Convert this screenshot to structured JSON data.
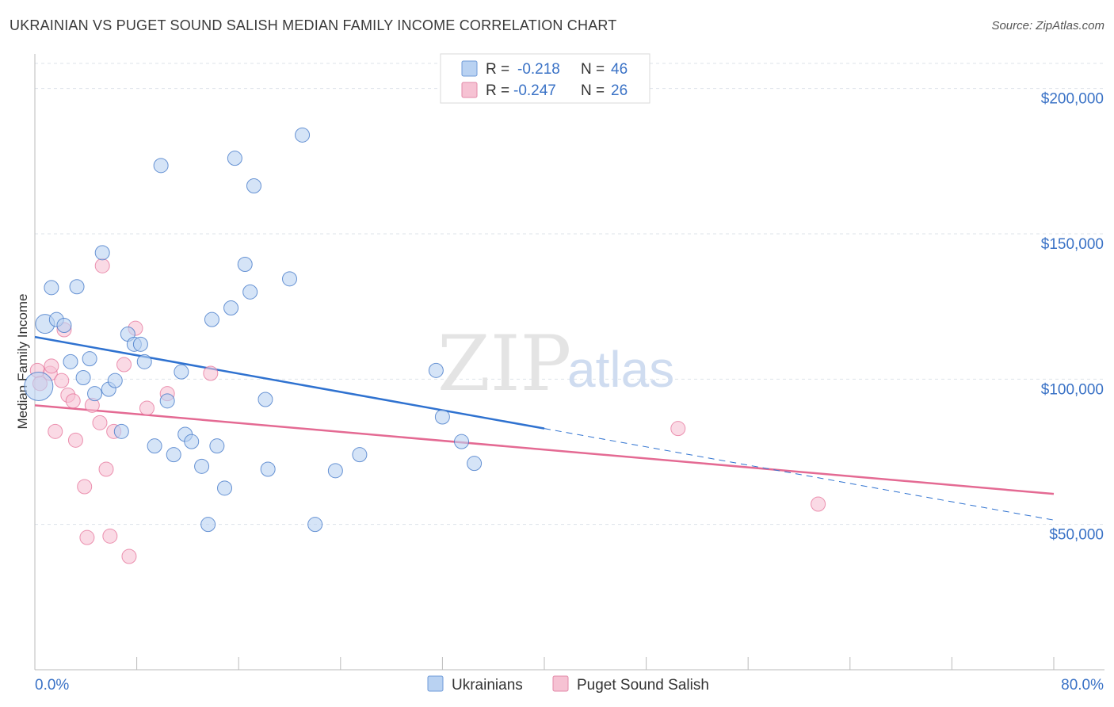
{
  "header": {
    "title": "UKRAINIAN VS PUGET SOUND SALISH MEDIAN FAMILY INCOME CORRELATION CHART",
    "source": "Source: ZipAtlas.com"
  },
  "watermark": {
    "zip": "ZIP",
    "atlas": "atlas"
  },
  "colors": {
    "blue": "#3a72c6",
    "blue_fill": "#b9d2f2",
    "blue_line": "#2f72d0",
    "pink": "#e46a93",
    "pink_fill": "#f6c2d3",
    "grid": "#dde3ea"
  },
  "legend": {
    "rows": [
      {
        "r_label": "R = ",
        "r_value": "-0.218",
        "n_label": "N = ",
        "n_value": "46"
      },
      {
        "r_label": "R = ",
        "r_value": "-0.247",
        "n_label": "N = ",
        "n_value": "26"
      }
    ]
  },
  "bottom_legend": {
    "items": [
      "Ukrainians",
      "Puget Sound Salish"
    ]
  },
  "chart_data": {
    "type": "scatter",
    "title": "UKRAINIAN VS PUGET SOUND SALISH MEDIAN FAMILY INCOME CORRELATION CHART",
    "xlabel": "",
    "ylabel": "Median Family Income",
    "xlim": [
      0,
      80
    ],
    "ylim": [
      0,
      210000
    ],
    "x_tick_labels": [
      "0.0%",
      "80.0%"
    ],
    "y_ticks": [
      50000,
      100000,
      150000,
      200000
    ],
    "y_tick_labels": [
      "$50,000",
      "$100,000",
      "$150,000",
      "$200,000"
    ],
    "series": [
      {
        "name": "Ukrainians",
        "color": "#3a72c6",
        "trend": {
          "x_start": 0,
          "y_start": 114500,
          "x_end": 40,
          "y_end": 83000,
          "dashed_to_x": 80,
          "dashed_to_y": 51500
        },
        "points": [
          [
            0.3,
            97500,
            3
          ],
          [
            0.8,
            119000,
            2
          ],
          [
            1.3,
            131500,
            1
          ],
          [
            1.7,
            120500,
            1
          ],
          [
            2.3,
            118500,
            1
          ],
          [
            2.8,
            106000,
            1
          ],
          [
            3.3,
            131800,
            1
          ],
          [
            3.8,
            100500,
            1
          ],
          [
            4.3,
            107000,
            1
          ],
          [
            4.7,
            95000,
            1
          ],
          [
            5.3,
            143500,
            1
          ],
          [
            5.8,
            96500,
            1
          ],
          [
            6.3,
            99500,
            1
          ],
          [
            6.8,
            82000,
            1
          ],
          [
            7.3,
            115500,
            1
          ],
          [
            7.8,
            112000,
            1
          ],
          [
            8.3,
            112000,
            1
          ],
          [
            8.6,
            106000,
            1
          ],
          [
            9.4,
            77000,
            1
          ],
          [
            9.9,
            173500,
            1
          ],
          [
            10.4,
            92500,
            1
          ],
          [
            10.9,
            74000,
            1
          ],
          [
            11.5,
            102500,
            1
          ],
          [
            11.8,
            81000,
            1
          ],
          [
            12.3,
            78500,
            1
          ],
          [
            13.1,
            70000,
            1
          ],
          [
            13.6,
            50000,
            1
          ],
          [
            13.9,
            120500,
            1
          ],
          [
            14.3,
            77000,
            1
          ],
          [
            14.9,
            62500,
            1
          ],
          [
            15.4,
            124500,
            1
          ],
          [
            15.7,
            176000,
            1
          ],
          [
            16.5,
            139500,
            1
          ],
          [
            16.9,
            130000,
            1
          ],
          [
            17.2,
            166500,
            1
          ],
          [
            18.1,
            93000,
            1
          ],
          [
            18.3,
            69000,
            1
          ],
          [
            20.0,
            134500,
            1
          ],
          [
            21.0,
            184000,
            1
          ],
          [
            22.0,
            50000,
            1
          ],
          [
            23.6,
            68500,
            1
          ],
          [
            25.5,
            74000,
            1
          ],
          [
            31.5,
            103000,
            1
          ],
          [
            32.0,
            87000,
            1
          ],
          [
            33.5,
            78500,
            1
          ],
          [
            34.5,
            71000,
            1
          ]
        ]
      },
      {
        "name": "Puget Sound Salish",
        "color": "#e46a93",
        "trend": {
          "x_start": 0,
          "y_start": 91000,
          "x_end": 80,
          "y_end": 60500
        },
        "points": [
          [
            0.2,
            103000,
            1
          ],
          [
            0.4,
            98500,
            1
          ],
          [
            1.2,
            102000,
            1
          ],
          [
            1.3,
            104500,
            1
          ],
          [
            1.6,
            82000,
            1
          ],
          [
            2.1,
            99500,
            1
          ],
          [
            2.3,
            117000,
            1
          ],
          [
            2.6,
            94500,
            1
          ],
          [
            3.0,
            92500,
            1
          ],
          [
            3.2,
            79000,
            1
          ],
          [
            3.9,
            63000,
            1
          ],
          [
            4.1,
            45500,
            1
          ],
          [
            4.5,
            91000,
            1
          ],
          [
            5.1,
            85000,
            1
          ],
          [
            5.3,
            139000,
            1
          ],
          [
            5.6,
            69000,
            1
          ],
          [
            5.9,
            46000,
            1
          ],
          [
            6.2,
            82000,
            1
          ],
          [
            7.0,
            105000,
            1
          ],
          [
            7.4,
            39000,
            1
          ],
          [
            7.9,
            117500,
            1
          ],
          [
            8.8,
            90000,
            1
          ],
          [
            10.4,
            95000,
            1
          ],
          [
            13.8,
            102000,
            1
          ],
          [
            50.5,
            83000,
            1
          ],
          [
            61.5,
            57000,
            1
          ]
        ]
      }
    ]
  }
}
